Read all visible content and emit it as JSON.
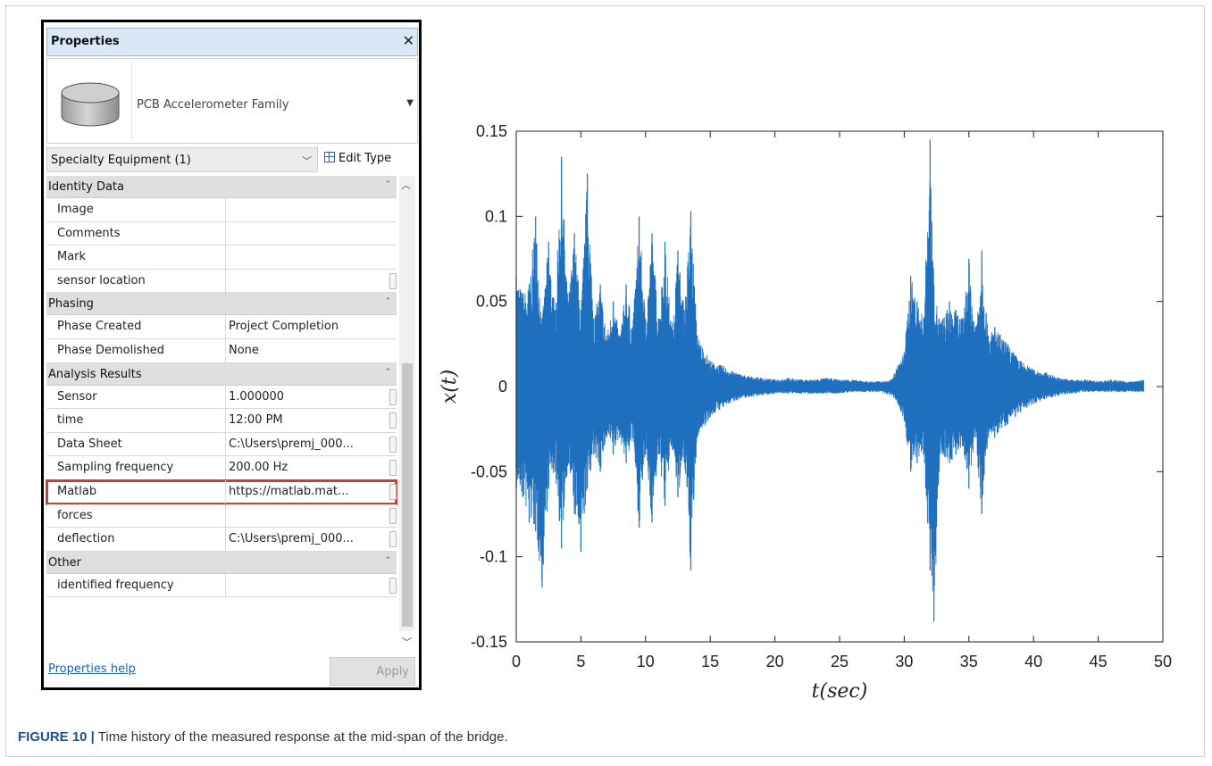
{
  "panel": {
    "title": "Properties",
    "family_name": "PCB Accelerometer Family",
    "category": "Specialty Equipment (1)",
    "edit_type_label": "Edit Type",
    "help_link": "Properties help",
    "apply_label": "Apply",
    "groups": [
      {
        "label": "Identity Data",
        "rows": [
          {
            "name": "Image",
            "value": ""
          },
          {
            "name": "Comments",
            "value": ""
          },
          {
            "name": "Mark",
            "value": ""
          },
          {
            "name": "sensor location",
            "value": ""
          }
        ]
      },
      {
        "label": "Phasing",
        "rows": [
          {
            "name": "Phase Created",
            "value": "Project Completion"
          },
          {
            "name": "Phase Demolished",
            "value": "None"
          }
        ]
      },
      {
        "label": "Analysis Results",
        "rows": [
          {
            "name": "Sensor",
            "value": "1.000000"
          },
          {
            "name": "time",
            "value": "12:00 PM"
          },
          {
            "name": "Data Sheet",
            "value": "C:\\Users\\premj_000..."
          },
          {
            "name": "Sampling frequency",
            "value": "200.00 Hz"
          },
          {
            "name": "Matlab",
            "value": "https://matlab.mat..."
          },
          {
            "name": "forces",
            "value": ""
          },
          {
            "name": "deflection",
            "value": "C:\\Users\\premj_000..."
          }
        ]
      },
      {
        "label": "Other",
        "rows": [
          {
            "name": "identified frequency",
            "value": ""
          }
        ]
      }
    ],
    "highlighted_row": "Matlab"
  },
  "chart_data": {
    "type": "line",
    "title": "",
    "xlabel": "t(sec)",
    "ylabel": "x(t)",
    "xlim": [
      0,
      50
    ],
    "ylim": [
      -0.15,
      0.15
    ],
    "xticks": [
      0,
      5,
      10,
      15,
      20,
      25,
      30,
      35,
      40,
      45,
      50
    ],
    "xtick_labels": [
      "0",
      "5",
      "10",
      "15",
      "20",
      "25",
      "30",
      "35",
      "40",
      "45",
      "50"
    ],
    "yticks": [
      -0.15,
      -0.1,
      -0.05,
      0,
      0.05,
      0.1,
      0.15
    ],
    "ytick_labels": [
      "-0.15",
      "-0.1",
      "-0.05",
      "0",
      "0.05",
      "0.1",
      "0.15"
    ],
    "line_color": "#1f6fbf",
    "grid": false,
    "series": [
      {
        "name": "",
        "envelope_x": [
          0,
          0.5,
          1,
          1.5,
          2,
          2.5,
          3,
          3.5,
          4,
          4.5,
          5,
          5.5,
          6,
          6.5,
          7,
          7.5,
          8,
          8.5,
          9,
          9.5,
          10,
          10.5,
          11,
          11.5,
          12,
          12.5,
          13,
          13.5,
          14,
          15,
          16,
          17,
          18,
          19,
          20,
          21,
          22,
          23,
          24,
          25,
          26,
          27,
          28,
          28.5,
          29,
          29.5,
          30,
          30.5,
          31,
          31.5,
          32,
          32.3,
          32.7,
          33,
          33.5,
          34,
          34.5,
          35,
          35.5,
          36,
          36.5,
          37,
          38,
          39,
          40,
          41,
          42,
          43,
          44,
          45,
          46,
          47,
          48,
          48.5
        ],
        "envelope_max": [
          0.065,
          0.055,
          0.06,
          0.1,
          0.04,
          0.085,
          0.045,
          0.135,
          0.05,
          0.09,
          0.045,
          0.125,
          0.04,
          0.06,
          0.03,
          0.05,
          0.03,
          0.06,
          0.035,
          0.1,
          0.04,
          0.09,
          0.04,
          0.085,
          0.035,
          0.08,
          0.045,
          0.103,
          0.03,
          0.015,
          0.012,
          0.008,
          0.006,
          0.005,
          0.004,
          0.005,
          0.004,
          0.004,
          0.005,
          0.004,
          0.004,
          0.003,
          0.003,
          0.003,
          0.004,
          0.012,
          0.02,
          0.065,
          0.05,
          0.04,
          0.145,
          0.06,
          0.04,
          0.04,
          0.05,
          0.045,
          0.04,
          0.075,
          0.035,
          0.08,
          0.03,
          0.035,
          0.025,
          0.015,
          0.01,
          0.008,
          0.005,
          0.004,
          0.004,
          0.003,
          0.004,
          0.003,
          0.003,
          0.004
        ],
        "envelope_min": [
          -0.06,
          -0.065,
          -0.08,
          -0.085,
          -0.118,
          -0.06,
          -0.05,
          -0.095,
          -0.045,
          -0.075,
          -0.097,
          -0.06,
          -0.04,
          -0.05,
          -0.03,
          -0.04,
          -0.03,
          -0.045,
          -0.03,
          -0.083,
          -0.04,
          -0.08,
          -0.04,
          -0.07,
          -0.035,
          -0.065,
          -0.045,
          -0.108,
          -0.03,
          -0.018,
          -0.012,
          -0.008,
          -0.006,
          -0.005,
          -0.004,
          -0.004,
          -0.004,
          -0.004,
          -0.004,
          -0.004,
          -0.003,
          -0.003,
          -0.003,
          -0.004,
          -0.005,
          -0.01,
          -0.02,
          -0.05,
          -0.045,
          -0.04,
          -0.108,
          -0.138,
          -0.05,
          -0.04,
          -0.045,
          -0.04,
          -0.035,
          -0.06,
          -0.03,
          -0.075,
          -0.03,
          -0.03,
          -0.022,
          -0.015,
          -0.01,
          -0.007,
          -0.005,
          -0.004,
          -0.003,
          -0.003,
          -0.003,
          -0.003,
          -0.003,
          -0.003
        ]
      }
    ]
  },
  "caption": {
    "label": "FIGURE 10 |",
    "text": " Time history of the measured response at the mid-span of the bridge."
  }
}
